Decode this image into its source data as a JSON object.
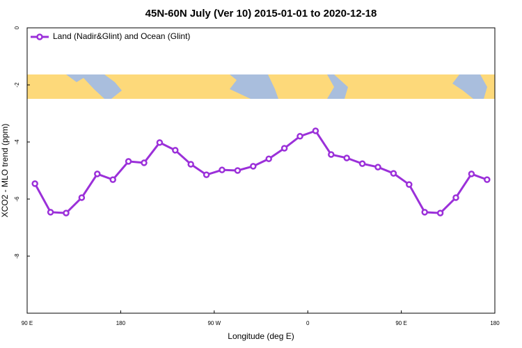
{
  "chart_data": {
    "type": "line",
    "title": "45N-60N July (Ver 10)   2015-01-01 to 2020-12-18",
    "x_label": "Longitude (deg E)",
    "y_label": "XCO2 - MLO trend (ppm)",
    "x": [
      97.5,
      112.5,
      127.5,
      142.5,
      157.5,
      172.5,
      187.5,
      202.5,
      217.5,
      232.5,
      247.5,
      262.5,
      277.5,
      292.5,
      307.5,
      322.5,
      337.5,
      352.5,
      367.5,
      382.5,
      397.5,
      412.5,
      427.5,
      442.5,
      457.5,
      472.5,
      487.5,
      502.5,
      517.5,
      532.5
    ],
    "series": [
      {
        "name": "Land (Nadir&Glint) and Ocean (Glint)",
        "color": "#9b30d9",
        "values": [
          -5.46,
          -6.46,
          -6.49,
          -5.95,
          -5.12,
          -5.32,
          -4.68,
          -4.73,
          -4.02,
          -4.29,
          -4.78,
          -5.15,
          -4.98,
          -5.0,
          -4.85,
          -4.59,
          -4.22,
          -3.8,
          -3.61,
          -4.44,
          -4.56,
          -4.76,
          -4.88,
          -5.1,
          -5.49,
          -6.46,
          -6.49,
          -5.95,
          -5.12,
          -5.32
        ]
      }
    ],
    "xlim": [
      90,
      540
    ],
    "xticks": [
      {
        "value": 90,
        "label": "90 E"
      },
      {
        "value": 180,
        "label": "180"
      },
      {
        "value": 270,
        "label": "90 W"
      },
      {
        "value": 360,
        "label": "0"
      },
      {
        "value": 450,
        "label": "90 E"
      },
      {
        "value": 540,
        "label": "180"
      }
    ],
    "ylim": [
      -10,
      0
    ],
    "yticks": [
      0,
      -2,
      -4,
      -6,
      -8
    ],
    "legend": "top-left"
  }
}
